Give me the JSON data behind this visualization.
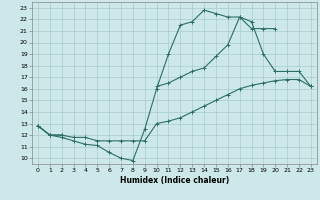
{
  "xlabel": "Humidex (Indice chaleur)",
  "bg_color": "#cce8e8",
  "grid_color": "#aacccc",
  "line_color": "#2e6e62",
  "xlim": [
    -0.5,
    23.5
  ],
  "ylim": [
    9.5,
    23.5
  ],
  "yticks": [
    10,
    11,
    12,
    13,
    14,
    15,
    16,
    17,
    18,
    19,
    20,
    21,
    22,
    23
  ],
  "xticks": [
    0,
    1,
    2,
    3,
    4,
    5,
    6,
    7,
    8,
    9,
    10,
    11,
    12,
    13,
    14,
    15,
    16,
    17,
    18,
    19,
    20,
    21,
    22,
    23
  ],
  "curve1_x": [
    0,
    1,
    2,
    3,
    4,
    5,
    6,
    7,
    8,
    9,
    10,
    11,
    12,
    13,
    14,
    15,
    16,
    17,
    18,
    19,
    20
  ],
  "curve1_y": [
    12.8,
    12.0,
    11.8,
    11.5,
    11.2,
    11.1,
    10.5,
    10.0,
    9.8,
    12.5,
    16.0,
    19.0,
    21.5,
    21.8,
    22.8,
    22.5,
    22.2,
    22.2,
    21.2,
    21.2,
    21.2
  ],
  "curve2_x": [
    0,
    1,
    2,
    10,
    11,
    12,
    13,
    14,
    15,
    16,
    17,
    18,
    19,
    20,
    21,
    22,
    23
  ],
  "curve2_y": [
    12.8,
    12.0,
    12.0,
    16.2,
    16.5,
    17.0,
    17.5,
    17.8,
    18.8,
    19.8,
    22.2,
    21.8,
    19.0,
    17.5,
    17.5,
    17.5,
    16.2
  ],
  "curve3_x": [
    0,
    1,
    2,
    3,
    4,
    5,
    6,
    7,
    8,
    9,
    10,
    11,
    12,
    13,
    14,
    15,
    16,
    17,
    18,
    19,
    20,
    21,
    22,
    23
  ],
  "curve3_y": [
    12.8,
    12.0,
    12.0,
    11.8,
    11.8,
    11.5,
    11.5,
    11.5,
    11.5,
    11.5,
    13.0,
    13.2,
    13.5,
    14.0,
    14.5,
    15.0,
    15.5,
    16.0,
    16.3,
    16.5,
    16.7,
    16.8,
    16.8,
    16.2
  ]
}
